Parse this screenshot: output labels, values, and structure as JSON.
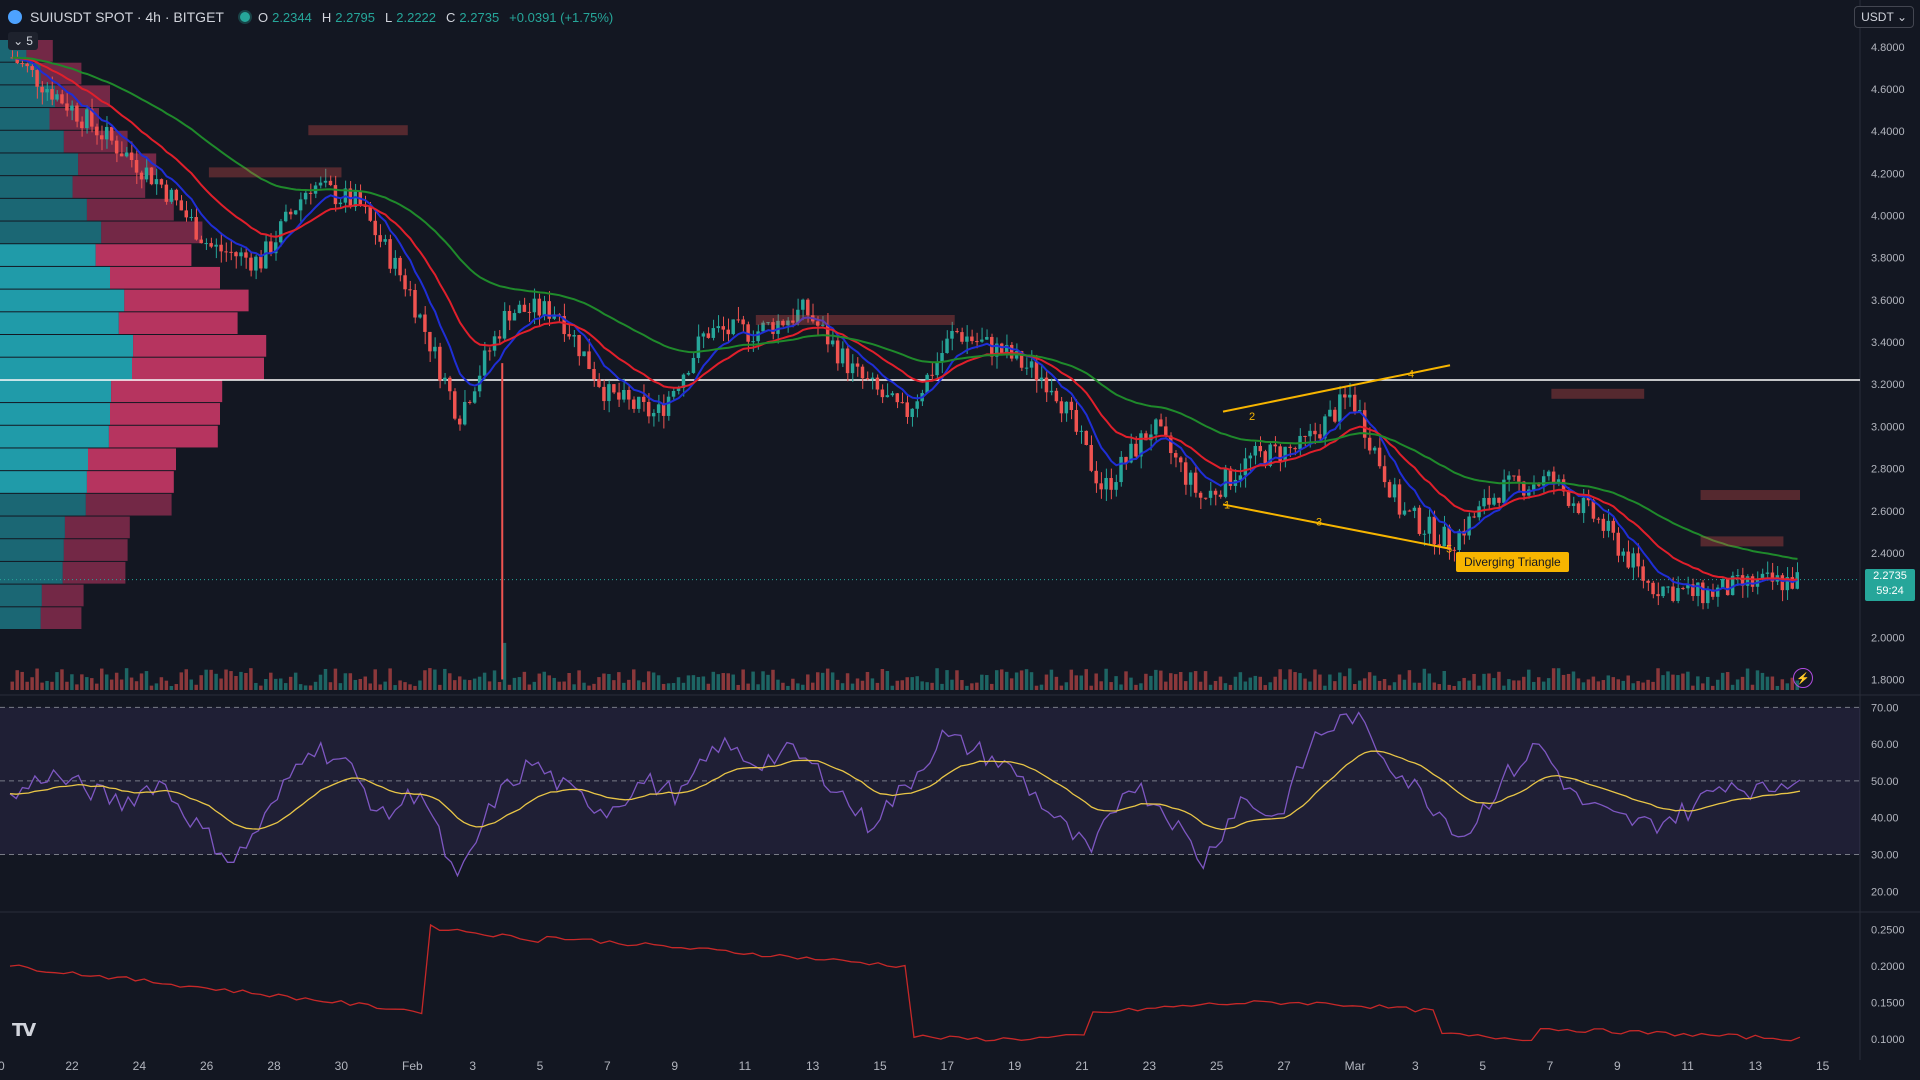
{
  "header": {
    "symbol_title": "SUIUSDT SPOT · 4h · BITGET",
    "o_label": "O",
    "o_value": "2.2344",
    "h_label": "H",
    "h_value": "2.2795",
    "l_label": "L",
    "l_value": "2.2222",
    "c_label": "C",
    "c_value": "2.2735",
    "change": "+0.0391 (+1.75%)",
    "collapse_count": "5"
  },
  "currency": "USDT",
  "price_tag": {
    "price": "2.2735",
    "countdown": "59:24"
  },
  "pattern_label": "Diverging Triangle",
  "wave_labels": [
    "1",
    "2",
    "3",
    "4",
    "5"
  ],
  "price_axis": [
    "4.8000",
    "4.6000",
    "4.4000",
    "4.2000",
    "4.0000",
    "3.8000",
    "3.6000",
    "3.4000",
    "3.2000",
    "3.0000",
    "2.8000",
    "2.6000",
    "2.4000",
    "2.2000",
    "2.0000",
    "1.8000"
  ],
  "rsi_axis": [
    "70.00",
    "60.00",
    "50.00",
    "40.00",
    "30.00",
    "20.00"
  ],
  "lower_axis": [
    "0.2500",
    "0.2000",
    "0.1500",
    "0.1000"
  ],
  "time_axis": [
    "0",
    "22",
    "24",
    "26",
    "28",
    "30",
    "Feb",
    "3",
    "5",
    "7",
    "9",
    "11",
    "13",
    "15",
    "17",
    "19",
    "21",
    "23",
    "25",
    "27",
    "Mar",
    "3",
    "5",
    "7",
    "9",
    "11",
    "13",
    "15"
  ],
  "colors": {
    "background": "#131722",
    "up": "#26a69a",
    "down": "#ef5350",
    "ema_fast": "#1f2ed6",
    "ema_mid": "#e01f2b",
    "ema_slow": "#1f8a2b",
    "rsi": "#7e57c2",
    "rsi_ma": "#e8c547",
    "pattern": "#f7b500",
    "vp_up": "#22aab8",
    "vp_down": "#d33a6a",
    "lower_line": "#c62828"
  },
  "chart_data": {
    "type": "candlestick",
    "symbol": "SUIUSDT",
    "timeframe": "4h",
    "ylim": [
      1.75,
      4.88
    ],
    "key_level": 3.22,
    "close_path": [
      {
        "x": "20",
        "y": 4.75
      },
      {
        "x": "22",
        "y": 4.55
      },
      {
        "x": "24",
        "y": 4.35
      },
      {
        "x": "26",
        "y": 4.15
      },
      {
        "x": "28",
        "y": 3.85
      },
      {
        "x": "29",
        "y": 3.78
      },
      {
        "x": "30",
        "y": 4.15
      },
      {
        "x": "Feb 1",
        "y": 4.05
      },
      {
        "x": "2",
        "y": 3.65
      },
      {
        "x": "3",
        "y": 3.05
      },
      {
        "x": "4",
        "y": 3.55
      },
      {
        "x": "5",
        "y": 3.55
      },
      {
        "x": "7",
        "y": 3.15
      },
      {
        "x": "9",
        "y": 3.05
      },
      {
        "x": "11",
        "y": 3.45
      },
      {
        "x": "13",
        "y": 3.45
      },
      {
        "x": "15",
        "y": 3.55
      },
      {
        "x": "17",
        "y": 3.25
      },
      {
        "x": "19",
        "y": 3.05
      },
      {
        "x": "21",
        "y": 3.45
      },
      {
        "x": "23",
        "y": 3.35
      },
      {
        "x": "24",
        "y": 3.2
      },
      {
        "x": "25",
        "y": 2.7
      },
      {
        "x": "26",
        "y": 3.0
      },
      {
        "x": "28",
        "y": 2.65
      },
      {
        "x": "Mar 1",
        "y": 2.85
      },
      {
        "x": "2",
        "y": 2.9
      },
      {
        "x": "3",
        "y": 3.15
      },
      {
        "x": "4",
        "y": 2.6
      },
      {
        "x": "5",
        "y": 2.45
      },
      {
        "x": "6",
        "y": 2.7
      },
      {
        "x": "7",
        "y": 2.75
      },
      {
        "x": "9",
        "y": 2.55
      },
      {
        "x": "10",
        "y": 2.25
      },
      {
        "x": "11",
        "y": 2.2
      },
      {
        "x": "13",
        "y": 2.25
      },
      {
        "x": "14",
        "y": 2.27
      }
    ],
    "rsi_path": [
      45,
      52,
      48,
      44,
      50,
      38,
      28,
      42,
      60,
      55,
      40,
      48,
      22,
      45,
      55,
      47,
      42,
      50,
      46,
      60,
      55,
      58,
      50,
      38,
      48,
      62,
      58,
      52,
      40,
      30,
      50,
      42,
      28,
      45,
      40,
      62,
      68,
      55,
      45,
      35,
      50,
      60,
      45,
      40,
      38,
      42,
      50,
      47,
      52
    ]
  }
}
